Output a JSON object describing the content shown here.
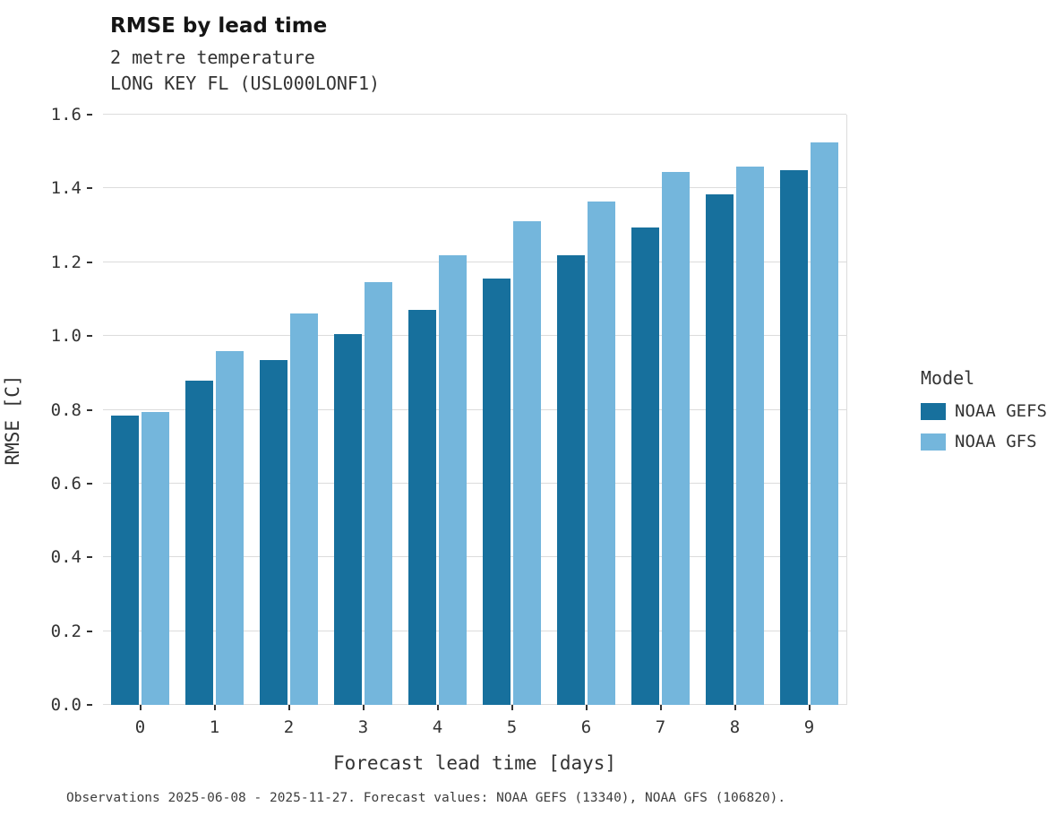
{
  "header": {
    "title": "RMSE by lead time",
    "subtitle1": "2 metre temperature",
    "subtitle2": "LONG KEY  FL (USL000LONF1)"
  },
  "chart_data": {
    "type": "bar",
    "categories": [
      "0",
      "1",
      "2",
      "3",
      "4",
      "5",
      "6",
      "7",
      "8",
      "9"
    ],
    "series": [
      {
        "name": "NOAA GEFS",
        "color": "#17709d",
        "values": [
          0.785,
          0.88,
          0.935,
          1.005,
          1.07,
          1.155,
          1.22,
          1.295,
          1.385,
          1.45
        ]
      },
      {
        "name": "NOAA GFS",
        "color": "#74b6dc",
        "values": [
          0.795,
          0.96,
          1.06,
          1.145,
          1.22,
          1.31,
          1.365,
          1.445,
          1.46,
          1.525
        ]
      }
    ],
    "title": "RMSE by lead time",
    "xlabel": "Forecast lead time [days]",
    "ylabel": "RMSE [C]",
    "ylim": [
      0,
      1.6
    ],
    "yticks": [
      0.0,
      0.2,
      0.4,
      0.6,
      0.8,
      1.0,
      1.2,
      1.4,
      1.6
    ],
    "grid": "horizontal",
    "legend_title": "Model",
    "legend_position": "right"
  },
  "caption": "Observations 2025-06-08 - 2025-11-27. Forecast values: NOAA GEFS (13340), NOAA GFS (106820)."
}
